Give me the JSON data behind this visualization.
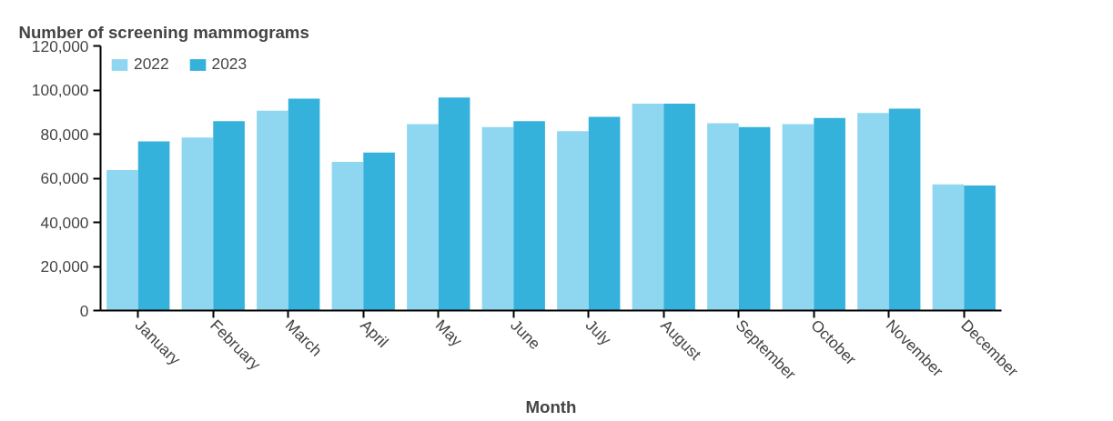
{
  "chart_data": {
    "type": "bar",
    "title": "Number of screening mammograms",
    "xlabel": "Month",
    "categories": [
      "January",
      "February",
      "March",
      "April",
      "May",
      "June",
      "July",
      "August",
      "September",
      "October",
      "November",
      "December"
    ],
    "series": [
      {
        "name": "2022",
        "color": "#8fd7f0",
        "values": [
          63700,
          78500,
          90600,
          67400,
          84500,
          83200,
          81300,
          93800,
          85000,
          84500,
          89600,
          57200
        ]
      },
      {
        "name": "2023",
        "color": "#35b2dc",
        "values": [
          76700,
          85900,
          96100,
          71600,
          96600,
          85900,
          87800,
          93800,
          83200,
          87300,
          91500,
          56700
        ]
      }
    ],
    "ylim": [
      0,
      120000
    ],
    "yticks": [
      {
        "value": 0,
        "label": "0"
      },
      {
        "value": 20000,
        "label": "20,000"
      },
      {
        "value": 40000,
        "label": "40,000"
      },
      {
        "value": 60000,
        "label": "60,000"
      },
      {
        "value": 80000,
        "label": "80,000"
      },
      {
        "value": 100000,
        "label": "100,000"
      },
      {
        "value": 120000,
        "label": "120,000"
      }
    ],
    "grid": false,
    "legend": "top left"
  }
}
